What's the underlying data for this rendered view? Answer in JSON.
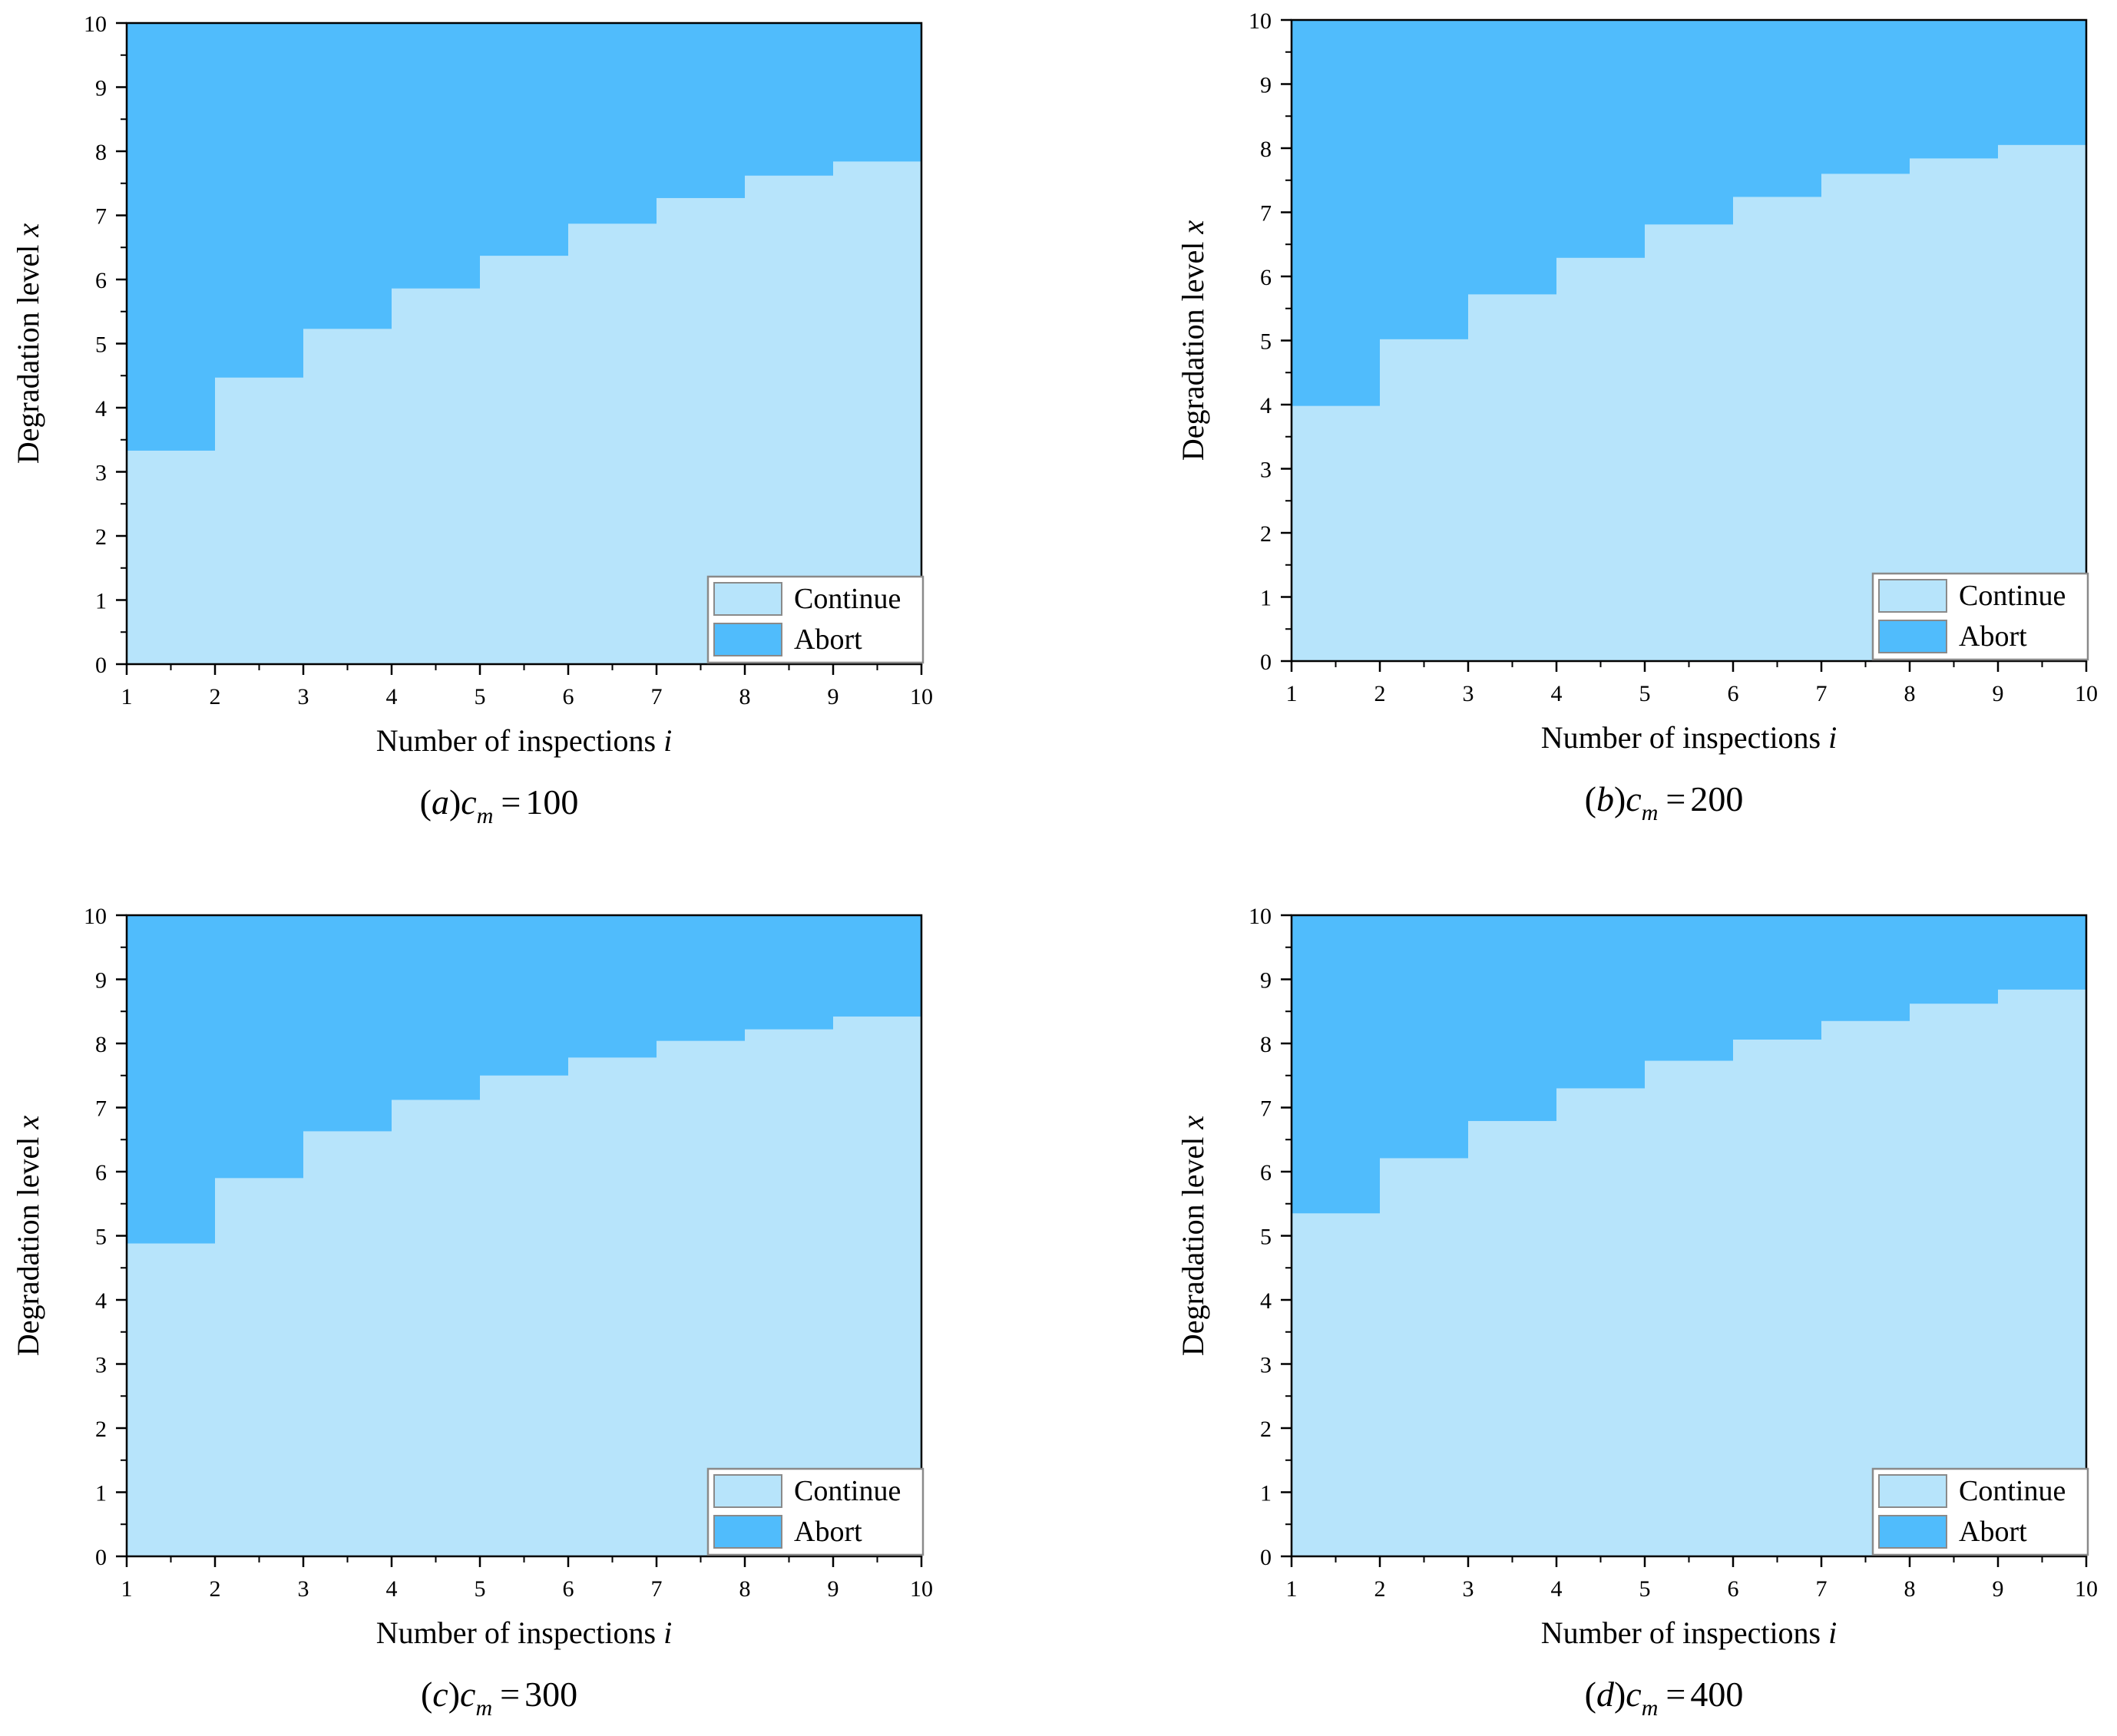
{
  "colors": {
    "continue": "#b7e4fb",
    "abort": "#50bcfc",
    "axis": "#000000",
    "legend_border": "#8a8a8a"
  },
  "chart_data": [
    {
      "id": "a",
      "type": "area",
      "title": "",
      "xlabel": "Number of inspections",
      "xlabel_var": "i",
      "ylabel": "Degradation level",
      "ylabel_var": "x",
      "xlim": [
        1,
        10
      ],
      "ylim": [
        0,
        10
      ],
      "x_ticks": [
        "1",
        "2",
        "3",
        "4",
        "5",
        "6",
        "7",
        "8",
        "9",
        "10"
      ],
      "y_ticks": [
        "0",
        "1",
        "2",
        "3",
        "4",
        "5",
        "6",
        "7",
        "8",
        "9",
        "10"
      ],
      "legend": [
        {
          "label": "Continue",
          "series": "continue"
        },
        {
          "label": "Abort",
          "series": "abort"
        }
      ],
      "legend_position": "bottom-right",
      "x": [
        1,
        2,
        3,
        4,
        5,
        6,
        7,
        8,
        9
      ],
      "thresholds": [
        3.33,
        4.47,
        5.23,
        5.86,
        6.37,
        6.87,
        7.27,
        7.62,
        7.84
      ],
      "caption": {
        "open": "(",
        "label": "a",
        "close": ")",
        "var": "c",
        "sub": "m",
        "eq": "=",
        "value": "100"
      }
    },
    {
      "id": "b",
      "type": "area",
      "title": "",
      "xlabel": "Number of inspections",
      "xlabel_var": "i",
      "ylabel": "Degradation level",
      "ylabel_var": "x",
      "xlim": [
        1,
        10
      ],
      "ylim": [
        0,
        10
      ],
      "x_ticks": [
        "1",
        "2",
        "3",
        "4",
        "5",
        "6",
        "7",
        "8",
        "9",
        "10"
      ],
      "y_ticks": [
        "0",
        "1",
        "2",
        "3",
        "4",
        "5",
        "6",
        "7",
        "8",
        "9",
        "10"
      ],
      "legend": [
        {
          "label": "Continue",
          "series": "continue"
        },
        {
          "label": "Abort",
          "series": "abort"
        }
      ],
      "legend_position": "bottom-right",
      "x": [
        1,
        2,
        3,
        4,
        5,
        6,
        7,
        8,
        9
      ],
      "thresholds": [
        3.98,
        5.02,
        5.72,
        6.29,
        6.81,
        7.24,
        7.6,
        7.84,
        8.05
      ],
      "caption": {
        "open": "(",
        "label": "b",
        "close": ")",
        "var": "c",
        "sub": "m",
        "eq": "=",
        "value": "200"
      }
    },
    {
      "id": "c",
      "type": "area",
      "title": "",
      "xlabel": "Number of inspections",
      "xlabel_var": "i",
      "ylabel": "Degradation level",
      "ylabel_var": "x",
      "xlim": [
        1,
        10
      ],
      "ylim": [
        0,
        10
      ],
      "x_ticks": [
        "1",
        "2",
        "3",
        "4",
        "5",
        "6",
        "7",
        "8",
        "9",
        "10"
      ],
      "y_ticks": [
        "0",
        "1",
        "2",
        "3",
        "4",
        "5",
        "6",
        "7",
        "8",
        "9",
        "10"
      ],
      "legend": [
        {
          "label": "Continue",
          "series": "continue"
        },
        {
          "label": "Abort",
          "series": "abort"
        }
      ],
      "legend_position": "bottom-right",
      "x": [
        1,
        2,
        3,
        4,
        5,
        6,
        7,
        8,
        9
      ],
      "thresholds": [
        4.88,
        5.9,
        6.63,
        7.12,
        7.5,
        7.78,
        8.04,
        8.22,
        8.42
      ],
      "caption": {
        "open": "(",
        "label": "c",
        "close": ")",
        "var": "c",
        "sub": "m",
        "eq": "=",
        "value": "300"
      }
    },
    {
      "id": "d",
      "type": "area",
      "title": "",
      "xlabel": "Number of inspections",
      "xlabel_var": "i",
      "ylabel": "Degradation level",
      "ylabel_var": "x",
      "xlim": [
        1,
        10
      ],
      "ylim": [
        0,
        10
      ],
      "x_ticks": [
        "1",
        "2",
        "3",
        "4",
        "5",
        "6",
        "7",
        "8",
        "9",
        "10"
      ],
      "y_ticks": [
        "0",
        "1",
        "2",
        "3",
        "4",
        "5",
        "6",
        "7",
        "8",
        "9",
        "10"
      ],
      "legend": [
        {
          "label": "Continue",
          "series": "continue"
        },
        {
          "label": "Abort",
          "series": "abort"
        }
      ],
      "legend_position": "bottom-right",
      "x": [
        1,
        2,
        3,
        4,
        5,
        6,
        7,
        8,
        9
      ],
      "thresholds": [
        5.35,
        6.21,
        6.79,
        7.3,
        7.73,
        8.06,
        8.35,
        8.62,
        8.84
      ],
      "caption": {
        "open": "(",
        "label": "d",
        "close": ")",
        "var": "c",
        "sub": "m",
        "eq": "=",
        "value": "400"
      }
    }
  ]
}
